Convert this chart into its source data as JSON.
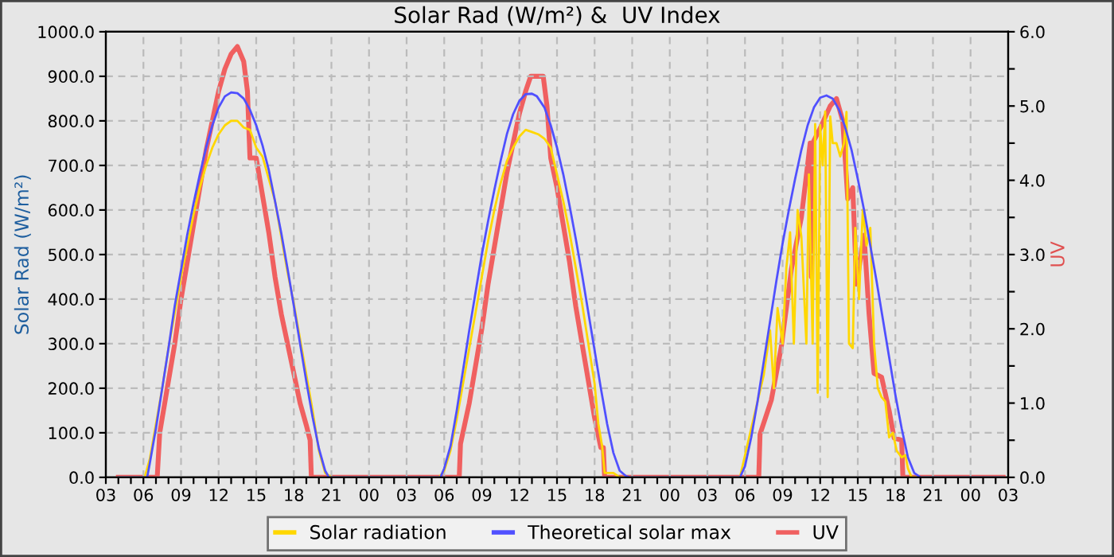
{
  "chart_data": {
    "type": "line",
    "title": "Solar Rad (W/m²) &  UV Index",
    "ylabel": "Solar Rad (W/m²)",
    "y2label": "UV",
    "xlim": [
      3,
      75
    ],
    "xticks": [
      {
        "value": 3,
        "label": "03"
      },
      {
        "value": 4,
        "label": null
      },
      {
        "value": 5,
        "label": null
      },
      {
        "value": 6,
        "label": "06"
      },
      {
        "value": 7,
        "label": null
      },
      {
        "value": 8,
        "label": null
      },
      {
        "value": 9,
        "label": "09"
      },
      {
        "value": 10,
        "label": null
      },
      {
        "value": 11,
        "label": null
      },
      {
        "value": 12,
        "label": "12"
      },
      {
        "value": 13,
        "label": null
      },
      {
        "value": 14,
        "label": null
      },
      {
        "value": 15,
        "label": "15"
      },
      {
        "value": 16,
        "label": null
      },
      {
        "value": 17,
        "label": null
      },
      {
        "value": 18,
        "label": "18"
      },
      {
        "value": 19,
        "label": null
      },
      {
        "value": 20,
        "label": null
      },
      {
        "value": 21,
        "label": "21"
      },
      {
        "value": 22,
        "label": null
      },
      {
        "value": 23,
        "label": null
      },
      {
        "value": 24,
        "label": "00"
      },
      {
        "value": 25,
        "label": null
      },
      {
        "value": 26,
        "label": null
      },
      {
        "value": 27,
        "label": "03"
      },
      {
        "value": 28,
        "label": null
      },
      {
        "value": 29,
        "label": null
      },
      {
        "value": 30,
        "label": "06"
      },
      {
        "value": 31,
        "label": null
      },
      {
        "value": 32,
        "label": null
      },
      {
        "value": 33,
        "label": "09"
      },
      {
        "value": 34,
        "label": null
      },
      {
        "value": 35,
        "label": null
      },
      {
        "value": 36,
        "label": "12"
      },
      {
        "value": 37,
        "label": null
      },
      {
        "value": 38,
        "label": null
      },
      {
        "value": 39,
        "label": "15"
      },
      {
        "value": 40,
        "label": null
      },
      {
        "value": 41,
        "label": null
      },
      {
        "value": 42,
        "label": "18"
      },
      {
        "value": 43,
        "label": null
      },
      {
        "value": 44,
        "label": null
      },
      {
        "value": 45,
        "label": "21"
      },
      {
        "value": 46,
        "label": null
      },
      {
        "value": 47,
        "label": null
      },
      {
        "value": 48,
        "label": "00"
      },
      {
        "value": 49,
        "label": null
      },
      {
        "value": 50,
        "label": null
      },
      {
        "value": 51,
        "label": "03"
      },
      {
        "value": 52,
        "label": null
      },
      {
        "value": 53,
        "label": null
      },
      {
        "value": 54,
        "label": "06"
      },
      {
        "value": 55,
        "label": null
      },
      {
        "value": 56,
        "label": null
      },
      {
        "value": 57,
        "label": "09"
      },
      {
        "value": 58,
        "label": null
      },
      {
        "value": 59,
        "label": null
      },
      {
        "value": 60,
        "label": "12"
      },
      {
        "value": 61,
        "label": null
      },
      {
        "value": 62,
        "label": null
      },
      {
        "value": 63,
        "label": "15"
      },
      {
        "value": 64,
        "label": null
      },
      {
        "value": 65,
        "label": null
      },
      {
        "value": 66,
        "label": "18"
      },
      {
        "value": 67,
        "label": null
      },
      {
        "value": 68,
        "label": null
      },
      {
        "value": 69,
        "label": "21"
      },
      {
        "value": 70,
        "label": null
      },
      {
        "value": 71,
        "label": null
      },
      {
        "value": 72,
        "label": "00"
      },
      {
        "value": 73,
        "label": null
      },
      {
        "value": 74,
        "label": null
      },
      {
        "value": 75,
        "label": "03"
      }
    ],
    "ylim": [
      0,
      1000
    ],
    "yticks": [
      {
        "value": 0,
        "label": "0.0"
      },
      {
        "value": 100,
        "label": "100.0"
      },
      {
        "value": 200,
        "label": "200.0"
      },
      {
        "value": 300,
        "label": "300.0"
      },
      {
        "value": 400,
        "label": "400.0"
      },
      {
        "value": 500,
        "label": "500.0"
      },
      {
        "value": 600,
        "label": "600.0"
      },
      {
        "value": 700,
        "label": "700.0"
      },
      {
        "value": 800,
        "label": "800.0"
      },
      {
        "value": 900,
        "label": "900.0"
      },
      {
        "value": 1000,
        "label": "1000.0"
      }
    ],
    "y2lim": [
      0,
      6
    ],
    "y2ticks": [
      {
        "value": 0,
        "label": "0.0"
      },
      {
        "value": 0.5,
        "label": null
      },
      {
        "value": 1,
        "label": "1.0"
      },
      {
        "value": 1.5,
        "label": null
      },
      {
        "value": 2,
        "label": "2.0"
      },
      {
        "value": 2.5,
        "label": null
      },
      {
        "value": 3,
        "label": "3.0"
      },
      {
        "value": 3.5,
        "label": null
      },
      {
        "value": 4,
        "label": "4.0"
      },
      {
        "value": 4.5,
        "label": null
      },
      {
        "value": 5,
        "label": "5.0"
      },
      {
        "value": 5.5,
        "label": null
      },
      {
        "value": 6,
        "label": "6.0"
      }
    ],
    "grid": true,
    "legend": "bottom",
    "line_style": "solid",
    "marker": "none",
    "series": [
      {
        "name": "Solar radiation",
        "color": "#ffd700",
        "x": [
          4,
          6.1,
          6.5,
          7,
          7.5,
          8,
          8.5,
          9,
          9.5,
          10,
          10.5,
          11,
          11.5,
          12,
          12.5,
          13,
          13.5,
          14,
          14.5,
          15,
          15.5,
          16,
          16.5,
          17,
          17.5,
          18,
          18.5,
          19,
          19.5,
          20,
          20.5,
          21,
          29.6,
          30,
          30.5,
          31,
          31.5,
          32,
          32.5,
          33,
          33.5,
          34,
          34.5,
          35,
          35.5,
          36,
          36.5,
          37,
          37.5,
          38,
          38.5,
          39,
          39.5,
          40,
          40.5,
          41,
          41.5,
          42,
          42.3,
          42.6,
          42.8,
          43.5,
          44,
          53.6,
          54.5,
          55,
          55.5,
          56,
          56.3,
          56.6,
          57,
          57.3,
          57.6,
          57.9,
          58.2,
          58.5,
          58.9,
          59.1,
          59.4,
          59.6,
          59.8,
          60,
          60.2,
          60.4,
          60.6,
          60.8,
          61,
          61.3,
          61.6,
          61.9,
          62.1,
          62.3,
          62.6,
          62.8,
          63.1,
          63.4,
          63.7,
          64,
          64.3,
          64.6,
          64.9,
          65.2,
          65.5,
          65.8,
          66.1,
          66.5,
          66.8,
          67,
          67.3,
          74.6
        ],
        "values": [
          0,
          0,
          40,
          120,
          200,
          290,
          370,
          450,
          520,
          590,
          650,
          700,
          740,
          770,
          790,
          800,
          800,
          785,
          780,
          740,
          720,
          670,
          620,
          540,
          460,
          390,
          310,
          230,
          150,
          60,
          10,
          0,
          0,
          15,
          60,
          130,
          210,
          290,
          370,
          450,
          530,
          600,
          660,
          710,
          740,
          765,
          780,
          775,
          770,
          760,
          740,
          680,
          620,
          550,
          470,
          390,
          300,
          210,
          120,
          70,
          10,
          10,
          0,
          0,
          110,
          170,
          230,
          330,
          200,
          380,
          300,
          470,
          550,
          300,
          600,
          540,
          300,
          680,
          300,
          793,
          190,
          790,
          700,
          821,
          180,
          810,
          750,
          750,
          720,
          750,
          820,
          300,
          290,
          560,
          400,
          600,
          520,
          560,
          300,
          200,
          180,
          170,
          90,
          100,
          60,
          45,
          50,
          20,
          0,
          0
        ]
      },
      {
        "name": "Theoretical solar max",
        "color": "#5050ff",
        "x": [
          4,
          6.3,
          6.5,
          7,
          7.5,
          8,
          8.5,
          9,
          9.5,
          10,
          10.5,
          11,
          11.5,
          12,
          12.5,
          13,
          13.5,
          14,
          14.5,
          15,
          15.5,
          16,
          16.5,
          17,
          17.5,
          18,
          18.5,
          19,
          19.5,
          20,
          20.5,
          20.8,
          29.7,
          30,
          30.5,
          31,
          31.5,
          32,
          32.5,
          33,
          33.5,
          34,
          34.5,
          35,
          35.5,
          36,
          36.5,
          37,
          37.4,
          38,
          38.5,
          39,
          39.5,
          40,
          40.5,
          41,
          41.5,
          42,
          42.5,
          43,
          43.5,
          44,
          44.5,
          44.8,
          53.6,
          54,
          54.5,
          55,
          55.5,
          56,
          56.5,
          57,
          57.5,
          58,
          58.5,
          59,
          59.5,
          60,
          60.5,
          61,
          61.5,
          62,
          62.5,
          63,
          63.5,
          64,
          64.5,
          65,
          65.5,
          66,
          66.5,
          67,
          67.5,
          68,
          74.6
        ],
        "values": [
          0,
          0,
          30,
          110,
          200,
          290,
          385,
          465,
          545,
          615,
          680,
          740,
          790,
          830,
          855,
          864,
          862,
          850,
          825,
          790,
          745,
          690,
          620,
          548,
          468,
          385,
          300,
          215,
          135,
          65,
          15,
          0,
          0,
          20,
          70,
          150,
          240,
          330,
          415,
          500,
          575,
          645,
          710,
          770,
          815,
          845,
          860,
          861,
          855,
          830,
          790,
          740,
          680,
          610,
          535,
          455,
          370,
          285,
          200,
          120,
          55,
          15,
          3,
          0,
          0,
          25,
          90,
          170,
          260,
          350,
          440,
          525,
          600,
          670,
          735,
          790,
          830,
          852,
          857,
          850,
          825,
          785,
          735,
          670,
          600,
          520,
          440,
          355,
          270,
          185,
          110,
          45,
          10,
          0,
          0
        ]
      },
      {
        "name": "UV",
        "color": "#f06060",
        "axis": "y2",
        "x": [
          4,
          7.1,
          7.3,
          7.5,
          8,
          8.5,
          9,
          9.5,
          10,
          10.5,
          11,
          11.5,
          12,
          12.5,
          13,
          13.5,
          14,
          14.3,
          14.5,
          15,
          15.5,
          16,
          16.5,
          17,
          17.5,
          18,
          18.5,
          19,
          19.3,
          19.4,
          31.2,
          31.3,
          32,
          32.5,
          33,
          33.5,
          34,
          34.5,
          35,
          35.5,
          36,
          36.5,
          36.9,
          37.9,
          38.2,
          38.5,
          39,
          39.5,
          40,
          40.5,
          41,
          41.5,
          42,
          42.5,
          42.7,
          42.8,
          55.1,
          55.2,
          56.1,
          56.9,
          57.7,
          58.5,
          59.2,
          59.3,
          59.4,
          60,
          60.8,
          61.3,
          61.8,
          62.2,
          62.6,
          62.9,
          63.5,
          63.9,
          64.3,
          64.9,
          65.5,
          65.9,
          66.5,
          66.6,
          74.6
        ],
        "values": [
          0,
          0,
          0.6,
          0.8,
          1.3,
          1.8,
          2.4,
          2.9,
          3.4,
          3.9,
          4.4,
          4.8,
          5.2,
          5.5,
          5.7,
          5.8,
          5.6,
          5.2,
          4.3,
          4.3,
          3.8,
          3.3,
          2.7,
          2.2,
          1.8,
          1.4,
          1.0,
          0.7,
          0.5,
          0,
          0,
          0.45,
          1.0,
          1.5,
          2.0,
          2.6,
          3.1,
          3.6,
          4.1,
          4.5,
          4.9,
          5.2,
          5.4,
          5.4,
          5.0,
          4.3,
          3.9,
          3.4,
          2.9,
          2.3,
          1.8,
          1.3,
          0.8,
          0.4,
          0.4,
          0,
          0,
          0.58,
          1.04,
          1.76,
          2.8,
          3.5,
          4.5,
          2.7,
          4.5,
          4.7,
          5.0,
          5.1,
          4.8,
          3.75,
          3.9,
          2.6,
          3.26,
          2.2,
          1.4,
          1.35,
          0.9,
          0.53,
          0.5,
          0,
          0
        ]
      }
    ]
  }
}
